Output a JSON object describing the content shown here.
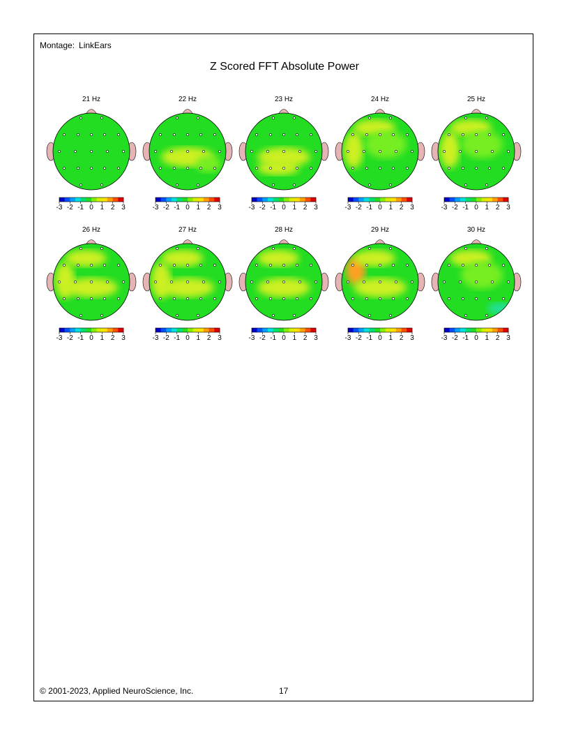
{
  "montage": {
    "label": "Montage:",
    "value": "LinkEars"
  },
  "title": "Z Scored FFT Absolute Power",
  "footer": {
    "copyright": "© 2001-2023, Applied NeuroScience, Inc.",
    "page": "17"
  },
  "colors": {
    "green": "#22dd22",
    "lime": "#77ee22",
    "yellowgreen": "#ccf022",
    "yellow": "#ffe000",
    "orange": "#ffa020",
    "cyan": "#22e0a0",
    "ear": "#e6b4b4"
  },
  "scale_ticks": [
    "-3",
    "-2",
    "-1",
    "0",
    "1",
    "2",
    "3"
  ],
  "maps": [
    {
      "label": "21 Hz",
      "blobs": []
    },
    {
      "label": "22 Hz",
      "blobs": [
        "yg-mid",
        "lime-right"
      ]
    },
    {
      "label": "23 Hz",
      "blobs": [
        "yg-mid",
        "yg-low"
      ]
    },
    {
      "label": "24 Hz",
      "blobs": [
        "yg-top",
        "yg-left",
        "lime-mid"
      ]
    },
    {
      "label": "25 Hz",
      "blobs": [
        "yg-left",
        "yg-top",
        "lime-mid"
      ]
    },
    {
      "label": "26 Hz",
      "blobs": [
        "yg-mid",
        "yg-left",
        "yg-top"
      ]
    },
    {
      "label": "27 Hz",
      "blobs": [
        "yg-mid",
        "yg-left",
        "yg-top"
      ]
    },
    {
      "label": "28 Hz",
      "blobs": [
        "yg-mid",
        "yg-top"
      ]
    },
    {
      "label": "29 Hz",
      "blobs": [
        "orange-left",
        "yg-mid",
        "yg-top"
      ]
    },
    {
      "label": "30 Hz",
      "blobs": [
        "yg-top",
        "lime-mid",
        "cyan-low"
      ]
    }
  ]
}
